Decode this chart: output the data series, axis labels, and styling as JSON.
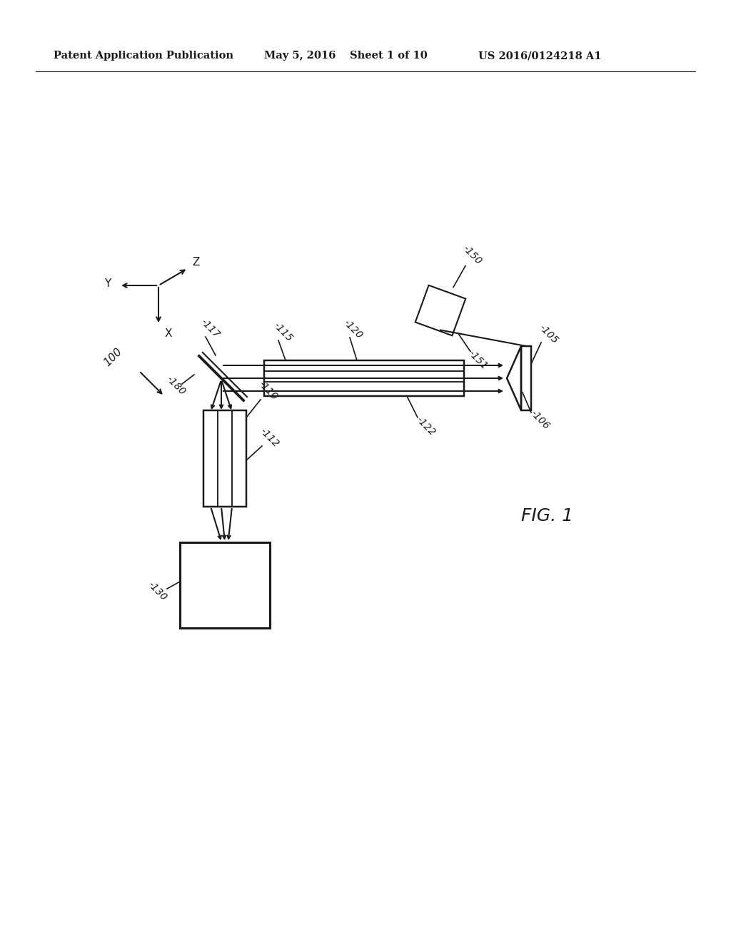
{
  "background_color": "#ffffff",
  "header_text": "Patent Application Publication",
  "header_date": "May 5, 2016",
  "header_sheet": "Sheet 1 of 10",
  "header_patent": "US 2016/0124218 A1",
  "fig_label": "FIG. 1",
  "line_color": "#1a1a1a"
}
